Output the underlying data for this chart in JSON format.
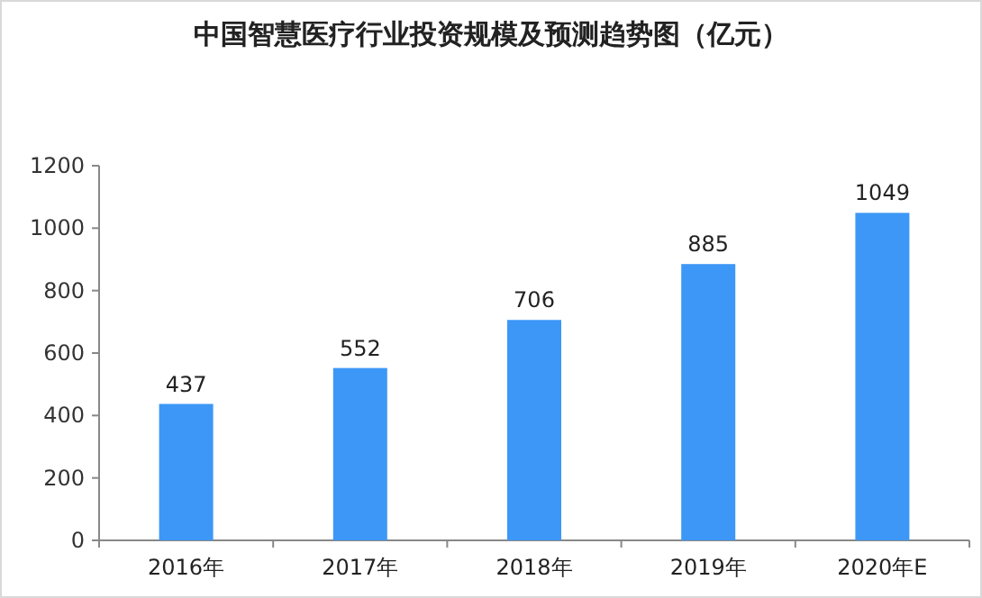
{
  "chart_data": {
    "type": "bar",
    "title": "中国智慧医疗行业投资规模及预测趋势图（亿元）",
    "categories": [
      "2016年",
      "2017年",
      "2018年",
      "2019年",
      "2020年E"
    ],
    "values": [
      437,
      552,
      706,
      885,
      1049
    ],
    "color": "#3d97f7",
    "ylim": [
      0,
      1200
    ],
    "yticks": [
      0,
      200,
      400,
      600,
      800,
      1000,
      1200
    ],
    "data_labels": true
  }
}
